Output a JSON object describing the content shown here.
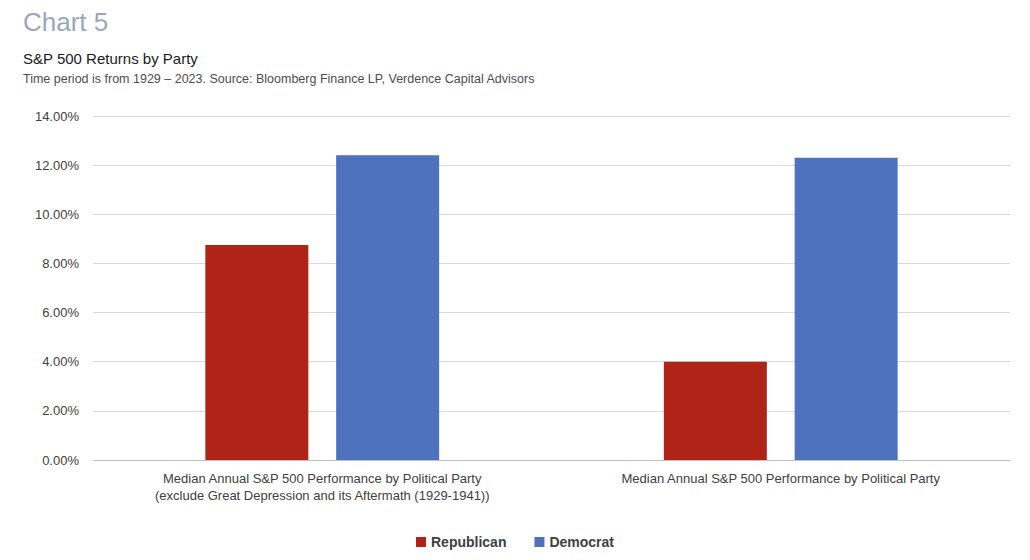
{
  "chart_data": {
    "type": "bar",
    "title": "Chart 5",
    "subtitle": "S&P 500 Returns by Party",
    "annotations": [
      "Time period is from 1929 – 2023. Source: Bloomberg Finance LP, Verdence Capital Advisors"
    ],
    "categories": [
      "Median Annual S&P 500 Performance by Political Party\n(exclude Great Depression and its Aftermath (1929-1941))",
      "Median Annual S&P 500 Performance by Political Party"
    ],
    "series": [
      {
        "name": "Republican",
        "color": "#b02418",
        "values": [
          8.75,
          4.0
        ]
      },
      {
        "name": "Democrat",
        "color": "#4f72bf",
        "values": [
          12.4,
          12.3
        ]
      }
    ],
    "ylim": [
      0,
      14
    ],
    "yticks": [
      {
        "value": 0,
        "label": "0.00%"
      },
      {
        "value": 2,
        "label": "2.00%"
      },
      {
        "value": 4,
        "label": "4.00%"
      },
      {
        "value": 6,
        "label": "6.00%"
      },
      {
        "value": 8,
        "label": "8.00%"
      },
      {
        "value": 10,
        "label": "10.00%"
      },
      {
        "value": 12,
        "label": "12.00%"
      },
      {
        "value": 14,
        "label": "14.00%"
      }
    ],
    "grid": true,
    "legend": "bottom"
  }
}
